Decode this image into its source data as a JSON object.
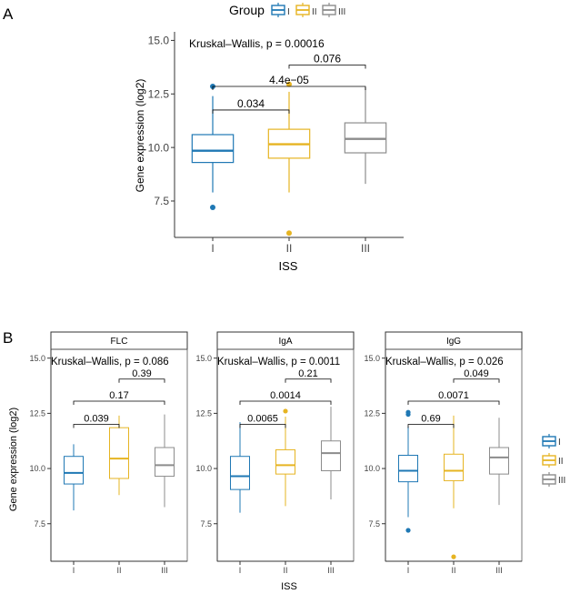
{
  "panels": {
    "a": {
      "letter": "A"
    },
    "b": {
      "letter": "B"
    }
  },
  "legend_a": {
    "title": "Group",
    "items": [
      "I",
      "II",
      "III"
    ]
  },
  "legend_b": {
    "items": [
      "I",
      "II",
      "III"
    ]
  },
  "colors": {
    "I": "#1f78b4",
    "II": "#e6b422",
    "III": "#8c8c8c",
    "panel_border": "#333333",
    "strip_fill": "#ffffff"
  },
  "chart_data": [
    {
      "id": "A",
      "type": "box",
      "xlabel": "ISS",
      "ylabel": "Gene expression (log2)",
      "categories": [
        "I",
        "II",
        "III"
      ],
      "ylim": [
        5.8,
        15.4
      ],
      "yticks": [
        7.5,
        10.0,
        12.5,
        15.0
      ],
      "ytick_labels": [
        "7.5",
        "10.0",
        "12.5",
        "15.0"
      ],
      "test_label": "Kruskal–Wallis, p = 0.00016",
      "boxes": [
        {
          "group": "I",
          "lower_whisker": 7.9,
          "q1": 9.3,
          "median": 9.85,
          "q3": 10.6,
          "upper_whisker": 12.4,
          "outliers": [
            12.85,
            7.2
          ]
        },
        {
          "group": "II",
          "lower_whisker": 7.9,
          "q1": 9.5,
          "median": 10.15,
          "q3": 10.85,
          "upper_whisker": 12.6,
          "outliers": [
            12.95,
            6.0
          ]
        },
        {
          "group": "III",
          "lower_whisker": 8.3,
          "q1": 9.75,
          "median": 10.4,
          "q3": 11.15,
          "upper_whisker": 12.8,
          "outliers": []
        }
      ],
      "comparisons": [
        {
          "from": 0,
          "to": 1,
          "label": "0.034",
          "y": 11.75
        },
        {
          "from": 0,
          "to": 2,
          "label": "4.4e−05",
          "y": 12.85
        },
        {
          "from": 1,
          "to": 2,
          "label": "0.076",
          "y": 13.85
        }
      ]
    },
    {
      "id": "B",
      "type": "box",
      "xlabel": "ISS",
      "ylabel": "Gene expression (log2)",
      "categories": [
        "I",
        "II",
        "III"
      ],
      "ylim": [
        5.8,
        15.4
      ],
      "yticks": [
        7.5,
        10.0,
        12.5,
        15.0
      ],
      "ytick_labels": [
        "7.5",
        "10.0",
        "12.5",
        "15.0"
      ],
      "facets": [
        {
          "strip": "FLC",
          "test_label": "Kruskal–Wallis, p = 0.086",
          "boxes": [
            {
              "group": "I",
              "lower_whisker": 8.1,
              "q1": 9.3,
              "median": 9.8,
              "q3": 10.55,
              "upper_whisker": 11.1,
              "outliers": []
            },
            {
              "group": "II",
              "lower_whisker": 8.8,
              "q1": 9.55,
              "median": 10.45,
              "q3": 11.85,
              "upper_whisker": 12.4,
              "outliers": []
            },
            {
              "group": "III",
              "lower_whisker": 8.25,
              "q1": 9.65,
              "median": 10.15,
              "q3": 10.95,
              "upper_whisker": 12.45,
              "outliers": []
            }
          ],
          "comparisons": [
            {
              "from": 0,
              "to": 1,
              "label": "0.039",
              "y": 12.0
            },
            {
              "from": 0,
              "to": 2,
              "label": "0.17",
              "y": 13.05
            },
            {
              "from": 1,
              "to": 2,
              "label": "0.39",
              "y": 14.05
            }
          ]
        },
        {
          "strip": "IgA",
          "test_label": "Kruskal–Wallis, p = 0.0011",
          "boxes": [
            {
              "group": "I",
              "lower_whisker": 8.0,
              "q1": 9.05,
              "median": 9.65,
              "q3": 10.55,
              "upper_whisker": 12.1,
              "outliers": []
            },
            {
              "group": "II",
              "lower_whisker": 8.3,
              "q1": 9.75,
              "median": 10.15,
              "q3": 10.85,
              "upper_whisker": 12.35,
              "outliers": [
                12.6
              ]
            },
            {
              "group": "III",
              "lower_whisker": 8.6,
              "q1": 9.9,
              "median": 10.7,
              "q3": 11.25,
              "upper_whisker": 12.8,
              "outliers": []
            }
          ],
          "comparisons": [
            {
              "from": 0,
              "to": 1,
              "label": "0.0065",
              "y": 12.0
            },
            {
              "from": 0,
              "to": 2,
              "label": "0.0014",
              "y": 13.05
            },
            {
              "from": 1,
              "to": 2,
              "label": "0.21",
              "y": 14.05
            }
          ]
        },
        {
          "strip": "IgG",
          "test_label": "Kruskal–Wallis, p = 0.026",
          "boxes": [
            {
              "group": "I",
              "lower_whisker": 7.8,
              "q1": 9.4,
              "median": 9.9,
              "q3": 10.6,
              "upper_whisker": 11.9,
              "outliers": [
                12.45,
                12.55,
                7.2
              ]
            },
            {
              "group": "II",
              "lower_whisker": 8.2,
              "q1": 9.45,
              "median": 9.9,
              "q3": 10.65,
              "upper_whisker": 12.4,
              "outliers": [
                6.0
              ]
            },
            {
              "group": "III",
              "lower_whisker": 8.35,
              "q1": 9.75,
              "median": 10.5,
              "q3": 10.95,
              "upper_whisker": 12.3,
              "outliers": []
            }
          ],
          "comparisons": [
            {
              "from": 0,
              "to": 1,
              "label": "0.69",
              "y": 12.0
            },
            {
              "from": 0,
              "to": 2,
              "label": "0.0071",
              "y": 13.05
            },
            {
              "from": 1,
              "to": 2,
              "label": "0.049",
              "y": 14.05
            }
          ]
        }
      ]
    }
  ]
}
